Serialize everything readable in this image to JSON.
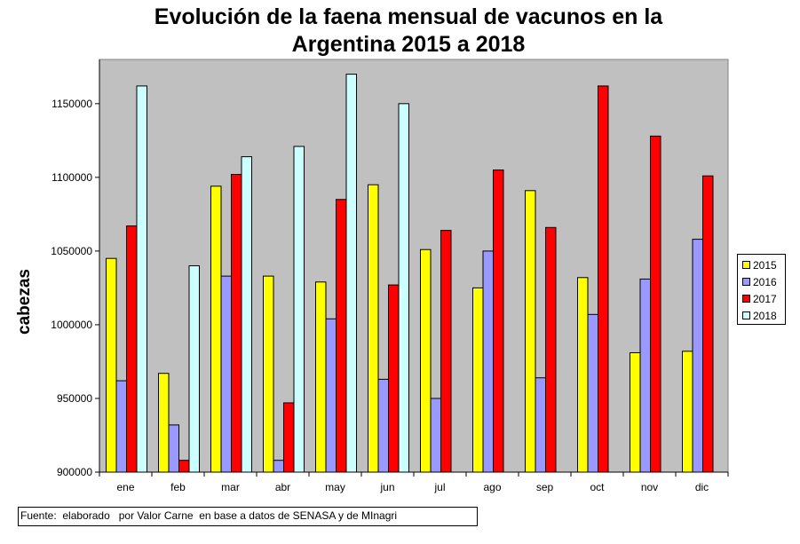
{
  "chart_data": {
    "type": "bar",
    "title": "Evolución de la faena mensual de vacunos en la Argentina 2015 a 2018",
    "title_lines": [
      "Evolución de la faena mensual de vacunos en la",
      "Argentina 2015 a 2018"
    ],
    "ylabel": "cabezas",
    "xlabel": "",
    "categories": [
      "ene",
      "feb",
      "mar",
      "abr",
      "may",
      "jun",
      "jul",
      "ago",
      "sep",
      "oct",
      "nov",
      "dic"
    ],
    "ylim": [
      900000,
      1180000
    ],
    "yticks": [
      900000,
      950000,
      1000000,
      1050000,
      1100000,
      1150000
    ],
    "grid": false,
    "legend_position": "right",
    "series": [
      {
        "name": "2015",
        "color": "#ffff00",
        "values": [
          1045000,
          967000,
          1094000,
          1033000,
          1029000,
          1095000,
          1051000,
          1025000,
          1091000,
          1032000,
          981000,
          982000
        ]
      },
      {
        "name": "2016",
        "color": "#9999ff",
        "values": [
          962000,
          932000,
          1033000,
          908000,
          1004000,
          963000,
          950000,
          1050000,
          964000,
          1007000,
          1031000,
          1058000
        ]
      },
      {
        "name": "2017",
        "color": "#ff0000",
        "values": [
          1067000,
          908000,
          1102000,
          947000,
          1085000,
          1027000,
          1064000,
          1105000,
          1066000,
          1162000,
          1128000,
          1101000
        ]
      },
      {
        "name": "2018",
        "color": "#ccffff",
        "values": [
          1162000,
          1040000,
          1114000,
          1121000,
          1170000,
          1150000,
          null,
          null,
          null,
          null,
          null,
          null
        ]
      }
    ],
    "plot_background": "#c0c0c0",
    "source_note": "Fuente:  elaborado   por Valor Carne  en base a datos de SENASA y de MInagri"
  }
}
